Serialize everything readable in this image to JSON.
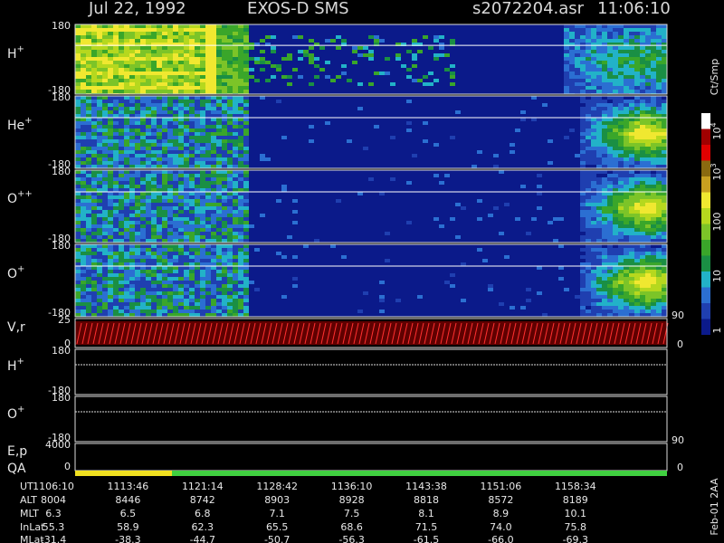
{
  "header": {
    "date": "Jul 22, 1992",
    "instrument": "EXOS-D SMS",
    "file": "s2072204.asr",
    "time": "11:06:10"
  },
  "panels": [
    {
      "label": "H",
      "sup": "+",
      "top": 180,
      "bottom": -180
    },
    {
      "label": "He",
      "sup": "+",
      "top": 180,
      "bottom": -180
    },
    {
      "label": "O",
      "sup": "++",
      "top": 180,
      "bottom": -180
    },
    {
      "label": "O",
      "sup": "+",
      "top": 180,
      "bottom": -180
    },
    {
      "label": "V,r",
      "top": 25,
      "bottom": 0,
      "right_top": 90,
      "right_bottom": 0
    },
    {
      "label": "H",
      "sup": "+",
      "top": 180,
      "bottom": -180
    },
    {
      "label": "O",
      "sup": "+",
      "top": 180,
      "bottom": -180
    },
    {
      "label": "E,p",
      "top": 4000,
      "bottom": 0,
      "right_top": 90,
      "right_bottom": 0
    }
  ],
  "qa": {
    "label": "QA"
  },
  "colorbar": {
    "unit": "Ct/Smp",
    "labels": [
      {
        "base": "10",
        "exp": "4"
      },
      {
        "base": "10",
        "exp": "3"
      },
      {
        "base": "100"
      },
      {
        "base": "10"
      },
      {
        "base": "1"
      }
    ]
  },
  "table": {
    "rows": [
      [
        "UT",
        "1106:10",
        "1113:46",
        "1121:14",
        "1128:42",
        "1136:10",
        "1143:38",
        "1151:06",
        "1158:34"
      ],
      [
        "ALT",
        "8004",
        "8446",
        "8742",
        "8903",
        "8928",
        "8818",
        "8572",
        "8189"
      ],
      [
        "MLT",
        "6.3",
        "6.5",
        "6.8",
        "7.1",
        "7.5",
        "8.1",
        "8.9",
        "10.1"
      ],
      [
        "InLat",
        "55.3",
        "58.9",
        "62.3",
        "65.5",
        "68.6",
        "71.5",
        "74.0",
        "75.8"
      ],
      [
        "MLat",
        "-31.4",
        "-38.3",
        "-44.7",
        "-50.7",
        "-56.3",
        "-61.5",
        "-66.0",
        "-69.3"
      ]
    ]
  },
  "side_label": "Feb-01 2AA"
}
